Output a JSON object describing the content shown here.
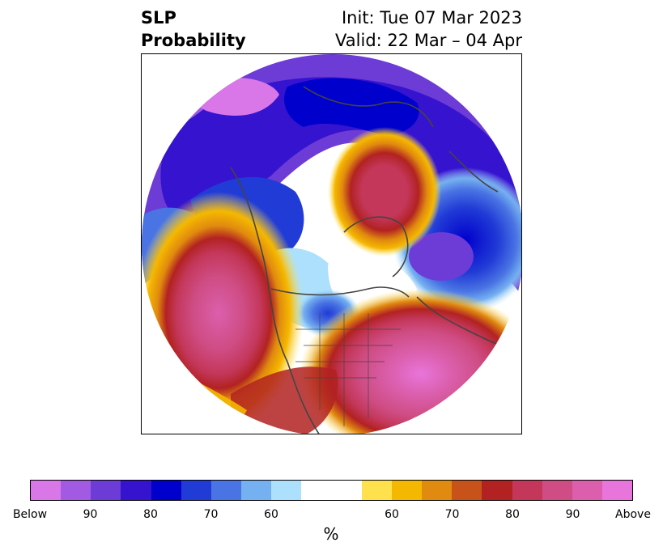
{
  "title": {
    "left_line1": "SLP",
    "left_line2": "Probability",
    "right_line1": "Init: Tue 07 Mar 2023",
    "right_line2": "Valid: 22 Mar – 04 Apr"
  },
  "colorbar": {
    "colors": [
      "#d977e8",
      "#a25ae3",
      "#6d3bd6",
      "#3614cf",
      "#0000cc",
      "#213bd6",
      "#4a74e3",
      "#75b0f0",
      "#ade0fc",
      "#ffffff",
      "#ffffff",
      "#ffe14d",
      "#f5b800",
      "#e08a0f",
      "#c7521a",
      "#b22222",
      "#c4375a",
      "#cf4d84",
      "#db5fad",
      "#e875db"
    ],
    "tick_labels": [
      "Below",
      "90",
      "80",
      "70",
      "60",
      "60",
      "70",
      "80",
      "90",
      "Above"
    ],
    "unit_label": "%"
  }
}
